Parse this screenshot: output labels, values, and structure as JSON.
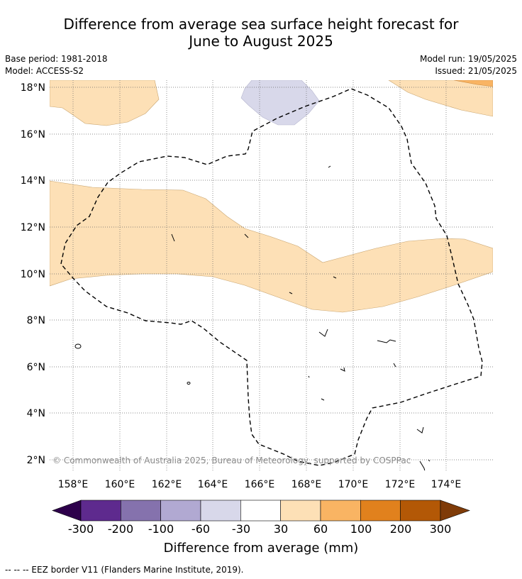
{
  "title_line1": "Difference from average sea surface height forecast for",
  "title_line2": "June to August 2025",
  "meta": {
    "base_period": "Base period: 1981-2018",
    "model": "Model: ACCESS-S2",
    "model_run": "Model run: 19/05/2025",
    "issued": "Issued: 21/05/2025"
  },
  "copyright": "© Commonwealth of Australia 2025, Bureau of Meteorology, supported by COSPPac",
  "lat_ticks": [
    "18°N",
    "16°N",
    "14°N",
    "12°N",
    "10°N",
    "8°N",
    "6°N",
    "4°N",
    "2°N"
  ],
  "lon_ticks": [
    "158°E",
    "160°E",
    "162°E",
    "164°E",
    "166°E",
    "168°E",
    "170°E",
    "172°E",
    "174°E"
  ],
  "colorbar": {
    "label": "Difference from average (mm)",
    "ticks": [
      "-300",
      "-200",
      "-100",
      "-60",
      "-30",
      "30",
      "60",
      "100",
      "200",
      "300"
    ],
    "colors": [
      "#2d004b",
      "#5e2a8e",
      "#8572ad",
      "#b1a9d2",
      "#d8d8ea",
      "#ffffff",
      "#fde0b6",
      "#f9b463",
      "#e1811d",
      "#b35806",
      "#7f3b08"
    ]
  },
  "legend_note": "--  --  -- EEZ border V11 (Flanders Marine Institute, 2019)."
}
